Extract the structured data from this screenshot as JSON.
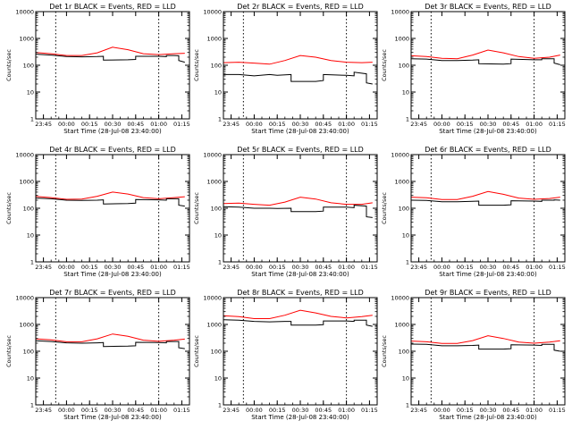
{
  "chart_data": [
    {
      "type": "line",
      "title": "Det 1r BLACK = Events, RED = LLD",
      "xlabel": "Start Time (28-Jul-08 23:40:00)",
      "ylabel": "Counts/sec",
      "ylim": [
        1,
        10000
      ],
      "yscale": "log",
      "x_ticks": [
        "23:45",
        "00:00",
        "00:15",
        "00:30",
        "00:45",
        "01:00",
        "01:15"
      ],
      "y_ticks": [
        "1",
        "10",
        "100",
        "1000",
        "10000"
      ],
      "series": [
        {
          "color": "#000000",
          "x": [
            "23:40",
            "23:50",
            "00:00",
            "00:10",
            "00:20",
            "00:24",
            "00:24",
            "00:40",
            "00:45",
            "00:45",
            "01:00",
            "01:05",
            "01:05",
            "01:10",
            "01:13",
            "01:13",
            "01:17"
          ],
          "values": [
            260,
            240,
            210,
            205,
            210,
            215,
            155,
            160,
            165,
            215,
            215,
            210,
            230,
            230,
            225,
            150,
            130
          ]
        },
        {
          "color": "#ff0000",
          "x": [
            "23:40",
            "23:50",
            "00:00",
            "00:10",
            "00:20",
            "00:30",
            "00:40",
            "00:50",
            "01:00",
            "01:10",
            "01:17"
          ],
          "values": [
            300,
            270,
            230,
            230,
            290,
            470,
            380,
            270,
            250,
            270,
            280
          ]
        }
      ]
    },
    {
      "type": "line",
      "title": "Det 2r BLACK = Events, RED = LLD",
      "xlabel": "Start Time (28-Jul-08 23:40:00)",
      "ylabel": "Counts/sec",
      "ylim": [
        1,
        10000
      ],
      "yscale": "log",
      "x_ticks": [
        "23:45",
        "00:00",
        "00:15",
        "00:30",
        "00:45",
        "01:00",
        "01:15"
      ],
      "y_ticks": [
        "1",
        "10",
        "100",
        "1000",
        "10000"
      ],
      "series": [
        {
          "color": "#000000",
          "x": [
            "23:40",
            "23:50",
            "00:00",
            "00:10",
            "00:15",
            "00:24",
            "00:24",
            "00:40",
            "00:45",
            "00:45",
            "01:00",
            "01:05",
            "01:05",
            "01:13",
            "01:13",
            "01:17"
          ],
          "values": [
            45,
            45,
            40,
            45,
            42,
            45,
            25,
            25,
            27,
            45,
            42,
            40,
            55,
            48,
            22,
            20
          ]
        },
        {
          "color": "#ff0000",
          "x": [
            "23:40",
            "23:50",
            "00:00",
            "00:10",
            "00:20",
            "00:30",
            "00:40",
            "00:50",
            "01:00",
            "01:10",
            "01:17"
          ],
          "values": [
            125,
            130,
            120,
            110,
            150,
            230,
            200,
            150,
            130,
            125,
            130
          ]
        }
      ]
    },
    {
      "type": "line",
      "title": "Det 3r BLACK = Events, RED = LLD",
      "xlabel": "Start Time (28-Jul-08 23:40:00)",
      "ylabel": "Counts/sec",
      "ylim": [
        1,
        10000
      ],
      "yscale": "log",
      "x_ticks": [
        "23:45",
        "00:00",
        "00:15",
        "00:30",
        "00:45",
        "01:00",
        "01:15"
      ],
      "y_ticks": [
        "1",
        "10",
        "100",
        "1000",
        "10000"
      ],
      "series": [
        {
          "color": "#000000",
          "x": [
            "23:40",
            "23:50",
            "00:00",
            "00:10",
            "00:20",
            "00:24",
            "00:24",
            "00:40",
            "00:45",
            "00:45",
            "01:00",
            "01:05",
            "01:05",
            "01:13",
            "01:13",
            "01:17"
          ],
          "values": [
            175,
            170,
            150,
            150,
            155,
            160,
            115,
            110,
            115,
            170,
            160,
            160,
            175,
            175,
            120,
            105
          ]
        },
        {
          "color": "#ff0000",
          "x": [
            "23:40",
            "23:50",
            "00:00",
            "00:10",
            "00:20",
            "00:30",
            "00:40",
            "00:50",
            "01:00",
            "01:10",
            "01:17"
          ],
          "values": [
            225,
            210,
            180,
            175,
            240,
            370,
            290,
            210,
            180,
            200,
            240
          ]
        }
      ]
    },
    {
      "type": "line",
      "title": "Det 4r BLACK = Events, RED = LLD",
      "xlabel": "Start Time (28-Jul-08 23:40:00)",
      "ylabel": "Counts/sec",
      "ylim": [
        1,
        10000
      ],
      "yscale": "log",
      "x_ticks": [
        "23:45",
        "00:00",
        "00:15",
        "00:30",
        "00:45",
        "01:00",
        "01:15"
      ],
      "y_ticks": [
        "1",
        "10",
        "100",
        "1000",
        "10000"
      ],
      "series": [
        {
          "color": "#000000",
          "x": [
            "23:40",
            "23:50",
            "00:00",
            "00:10",
            "00:20",
            "00:24",
            "00:24",
            "00:40",
            "00:45",
            "00:45",
            "01:00",
            "01:05",
            "01:05",
            "01:13",
            "01:13",
            "01:17"
          ],
          "values": [
            240,
            225,
            200,
            195,
            200,
            205,
            145,
            150,
            155,
            210,
            205,
            200,
            225,
            225,
            130,
            120
          ]
        },
        {
          "color": "#ff0000",
          "x": [
            "23:40",
            "23:50",
            "00:00",
            "00:10",
            "00:20",
            "00:30",
            "00:40",
            "00:50",
            "01:00",
            "01:10",
            "01:17"
          ],
          "values": [
            275,
            250,
            215,
            220,
            280,
            400,
            340,
            250,
            225,
            250,
            270
          ]
        }
      ]
    },
    {
      "type": "line",
      "title": "Det 5r BLACK = Events, RED = LLD",
      "xlabel": "Start Time (28-Jul-08 23:40:00)",
      "ylabel": "Counts/sec",
      "ylim": [
        1,
        10000
      ],
      "yscale": "log",
      "x_ticks": [
        "23:45",
        "00:00",
        "00:15",
        "00:30",
        "00:45",
        "01:00",
        "01:15"
      ],
      "y_ticks": [
        "1",
        "10",
        "100",
        "1000",
        "10000"
      ],
      "series": [
        {
          "color": "#000000",
          "x": [
            "23:40",
            "23:50",
            "00:00",
            "00:10",
            "00:15",
            "00:24",
            "00:24",
            "00:40",
            "00:45",
            "00:45",
            "01:00",
            "01:05",
            "01:05",
            "01:13",
            "01:13",
            "01:17"
          ],
          "values": [
            115,
            110,
            100,
            100,
            98,
            100,
            75,
            75,
            78,
            110,
            110,
            105,
            130,
            120,
            48,
            45
          ]
        },
        {
          "color": "#ff0000",
          "x": [
            "23:40",
            "23:50",
            "00:00",
            "00:10",
            "00:20",
            "00:30",
            "00:40",
            "00:50",
            "01:00",
            "01:10",
            "01:17"
          ],
          "values": [
            150,
            155,
            140,
            130,
            170,
            260,
            220,
            160,
            140,
            140,
            160
          ]
        }
      ]
    },
    {
      "type": "line",
      "title": "Det 6r BLACK = Events, RED = LLD",
      "xlabel": "Start Time (28-Jul-08 23:40:00)",
      "ylabel": "Counts/sec",
      "ylim": [
        1,
        10000
      ],
      "yscale": "log",
      "x_ticks": [
        "23:45",
        "00:00",
        "00:15",
        "00:30",
        "00:45",
        "01:00",
        "01:15"
      ],
      "y_ticks": [
        "1",
        "10",
        "100",
        "1000",
        "10000"
      ],
      "series": [
        {
          "color": "#000000",
          "x": [
            "23:40",
            "23:50",
            "00:00",
            "00:10",
            "00:20",
            "00:24",
            "00:24",
            "00:40",
            "00:45",
            "00:45",
            "01:00",
            "01:05",
            "01:05",
            "01:13",
            "01:13",
            "01:17"
          ],
          "values": [
            200,
            195,
            175,
            175,
            180,
            185,
            130,
            130,
            135,
            190,
            185,
            180,
            200,
            200,
            205,
            200
          ]
        },
        {
          "color": "#ff0000",
          "x": [
            "23:40",
            "23:50",
            "00:00",
            "00:10",
            "00:20",
            "00:30",
            "00:40",
            "00:50",
            "01:00",
            "01:10",
            "01:17"
          ],
          "values": [
            260,
            245,
            210,
            210,
            280,
            420,
            330,
            240,
            215,
            230,
            260
          ]
        }
      ]
    },
    {
      "type": "line",
      "title": "Det 7r BLACK = Events, RED = LLD",
      "xlabel": "Start Time (28-Jul-08 23:40:00)",
      "ylabel": "Counts/sec",
      "ylim": [
        1,
        10000
      ],
      "yscale": "log",
      "x_ticks": [
        "23:45",
        "00:00",
        "00:15",
        "00:30",
        "00:45",
        "01:00",
        "01:15"
      ],
      "y_ticks": [
        "1",
        "10",
        "100",
        "1000",
        "10000"
      ],
      "series": [
        {
          "color": "#000000",
          "x": [
            "23:40",
            "23:50",
            "00:00",
            "00:10",
            "00:20",
            "00:24",
            "00:24",
            "00:40",
            "00:45",
            "00:45",
            "01:00",
            "01:05",
            "01:05",
            "01:13",
            "01:13",
            "01:17"
          ],
          "values": [
            245,
            230,
            205,
            200,
            205,
            210,
            150,
            155,
            160,
            215,
            210,
            205,
            230,
            230,
            135,
            125
          ]
        },
        {
          "color": "#ff0000",
          "x": [
            "23:40",
            "23:50",
            "00:00",
            "00:10",
            "00:20",
            "00:30",
            "00:40",
            "00:50",
            "01:00",
            "01:10",
            "01:17"
          ],
          "values": [
            290,
            265,
            225,
            225,
            290,
            440,
            360,
            260,
            235,
            260,
            285
          ]
        }
      ]
    },
    {
      "type": "line",
      "title": "Det 8r BLACK = Events, RED = LLD",
      "xlabel": "Start Time (28-Jul-08 23:40:00)",
      "ylabel": "Counts/sec",
      "ylim": [
        1,
        10000
      ],
      "yscale": "log",
      "x_ticks": [
        "23:45",
        "00:00",
        "00:15",
        "00:30",
        "00:45",
        "01:00",
        "01:15"
      ],
      "y_ticks": [
        "1",
        "10",
        "100",
        "1000",
        "10000"
      ],
      "series": [
        {
          "color": "#000000",
          "x": [
            "23:40",
            "23:50",
            "00:00",
            "00:10",
            "00:20",
            "00:24",
            "00:24",
            "00:40",
            "00:45",
            "00:45",
            "01:00",
            "01:05",
            "01:05",
            "01:13",
            "01:13",
            "01:17"
          ],
          "values": [
            1500,
            1450,
            1300,
            1250,
            1300,
            1300,
            950,
            950,
            980,
            1350,
            1350,
            1300,
            1450,
            1450,
            950,
            850
          ]
        },
        {
          "color": "#ff0000",
          "x": [
            "23:40",
            "23:50",
            "00:00",
            "00:10",
            "00:20",
            "00:30",
            "00:40",
            "00:50",
            "01:00",
            "01:10",
            "01:17"
          ],
          "values": [
            2100,
            1950,
            1650,
            1650,
            2200,
            3400,
            2700,
            2000,
            1750,
            1950,
            2200
          ]
        }
      ]
    },
    {
      "type": "line",
      "title": "Det 9r BLACK = Events, RED = LLD",
      "xlabel": "Start Time (28-Jul-08 23:40:00)",
      "ylabel": "Counts/sec",
      "ylim": [
        1,
        10000
      ],
      "yscale": "log",
      "x_ticks": [
        "23:45",
        "00:00",
        "00:15",
        "00:30",
        "00:45",
        "01:00",
        "01:15"
      ],
      "y_ticks": [
        "1",
        "10",
        "100",
        "1000",
        "10000"
      ],
      "series": [
        {
          "color": "#000000",
          "x": [
            "23:40",
            "23:50",
            "00:00",
            "00:10",
            "00:20",
            "00:24",
            "00:24",
            "00:40",
            "00:45",
            "00:45",
            "01:00",
            "01:05",
            "01:05",
            "01:13",
            "01:13",
            "01:17"
          ],
          "values": [
            185,
            180,
            160,
            160,
            165,
            170,
            120,
            120,
            125,
            175,
            170,
            165,
            180,
            180,
            110,
            100
          ]
        },
        {
          "color": "#ff0000",
          "x": [
            "23:40",
            "23:50",
            "00:00",
            "00:10",
            "00:20",
            "00:30",
            "00:40",
            "00:50",
            "01:00",
            "01:10",
            "01:17"
          ],
          "values": [
            240,
            225,
            195,
            195,
            250,
            380,
            300,
            220,
            200,
            220,
            245
          ]
        }
      ]
    }
  ]
}
